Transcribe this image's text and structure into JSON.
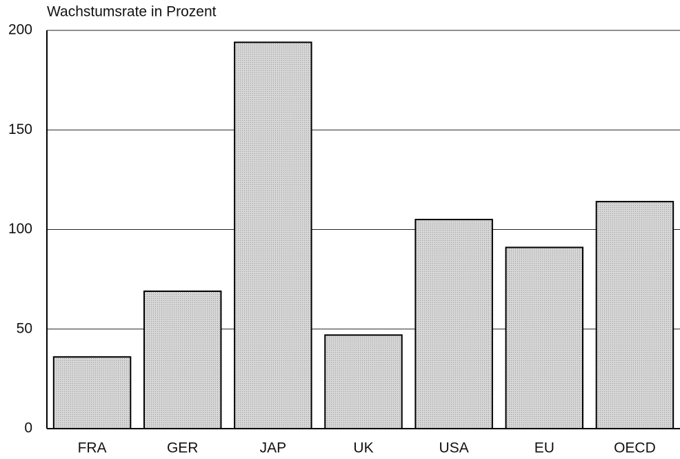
{
  "chart_data": {
    "type": "bar",
    "title": "Wachstumsrate in Prozent",
    "categories": [
      "FRA",
      "GER",
      "JAP",
      "UK",
      "USA",
      "EU",
      "OECD"
    ],
    "values": [
      36,
      69,
      194,
      47,
      105,
      91,
      114
    ],
    "color": "#cccccc",
    "ylim": [
      0,
      200
    ],
    "yticks": [
      0,
      50,
      100,
      150,
      200
    ],
    "grid": true
  }
}
